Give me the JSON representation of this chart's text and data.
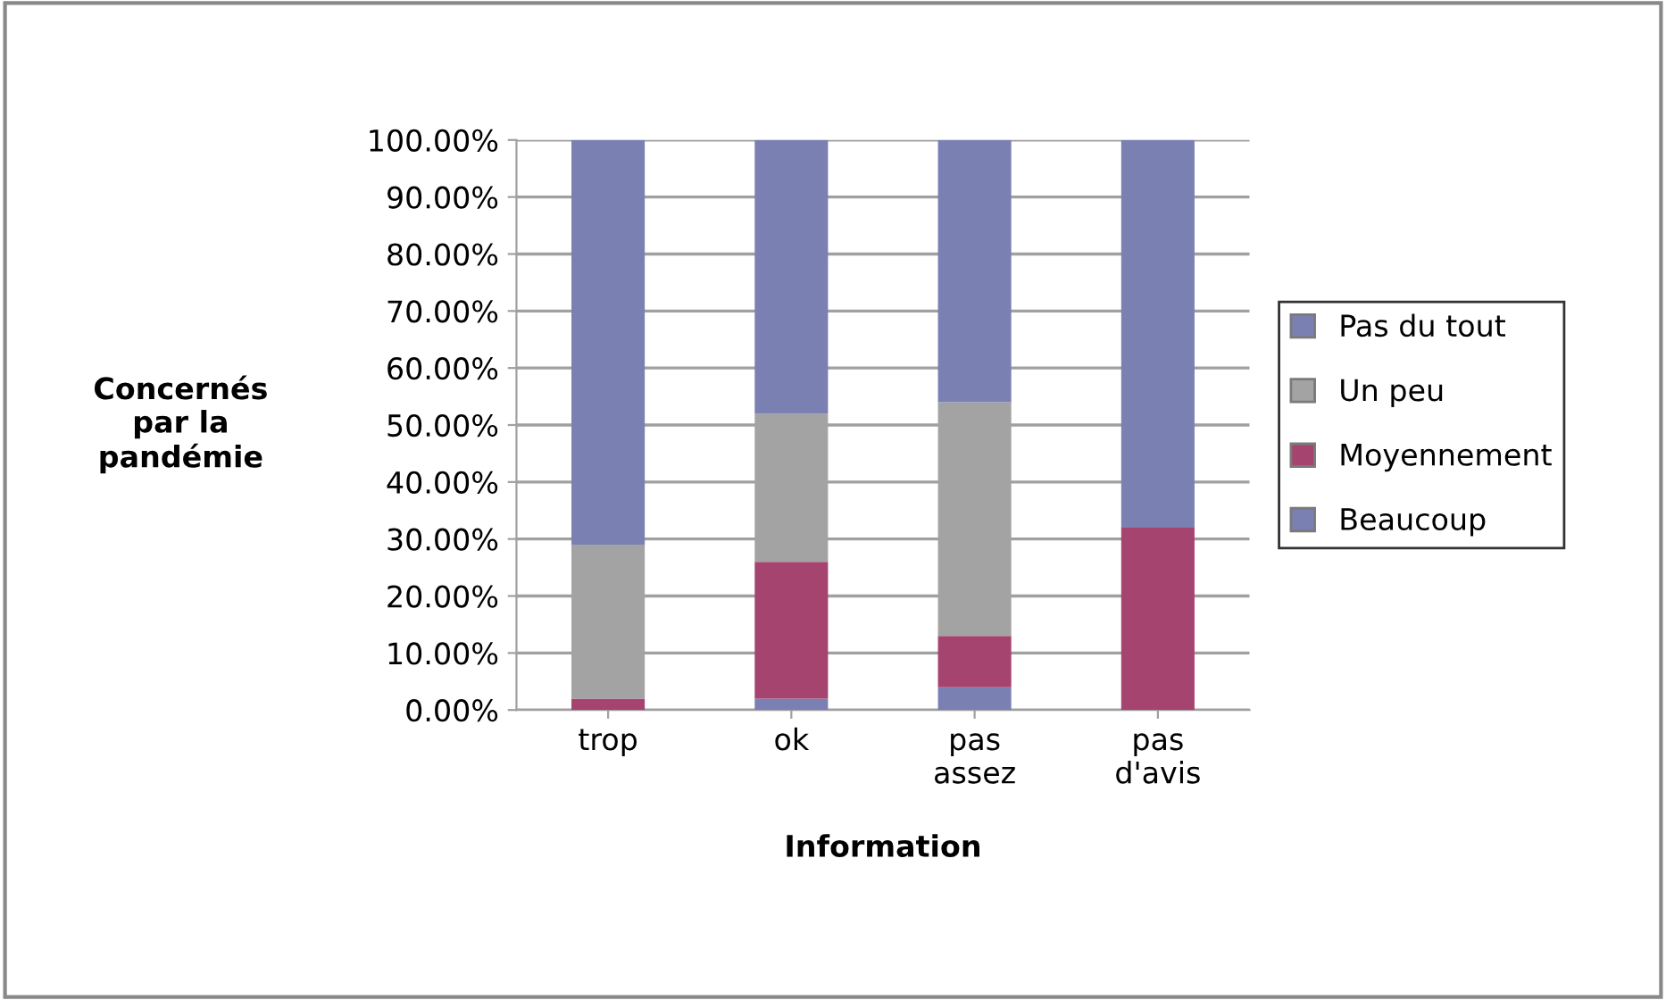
{
  "chart_data": {
    "type": "bar",
    "stacked": true,
    "xlabel": "Information",
    "ylabel": "Concernés\npar la\npandémie",
    "categories": [
      "trop",
      "ok",
      "pas\nassez",
      "pas\nd'avis"
    ],
    "series": [
      {
        "name": "Beaucoup",
        "color": "#7b80b3",
        "values": [
          0,
          2,
          4,
          0
        ]
      },
      {
        "name": "Moyennement",
        "color": "#a5446f",
        "values": [
          2,
          24,
          9,
          32
        ]
      },
      {
        "name": "Un peu",
        "color": "#a3a3a3",
        "values": [
          27,
          26,
          41,
          0
        ]
      },
      {
        "name": "Pas du tout",
        "color": "#7b80b3",
        "values": [
          71,
          48,
          46,
          68
        ]
      }
    ],
    "ylim": [
      0,
      100
    ],
    "yticks": [
      {
        "value": 0,
        "label": "0.00%"
      },
      {
        "value": 10,
        "label": "10.00%"
      },
      {
        "value": 20,
        "label": "20.00%"
      },
      {
        "value": 30,
        "label": "30.00%"
      },
      {
        "value": 40,
        "label": "40.00%"
      },
      {
        "value": 50,
        "label": "50.00%"
      },
      {
        "value": 60,
        "label": "60.00%"
      },
      {
        "value": 70,
        "label": "70.00%"
      },
      {
        "value": 80,
        "label": "80.00%"
      },
      {
        "value": 90,
        "label": "90.00%"
      },
      {
        "value": 100,
        "label": "100.00%"
      }
    ],
    "grid": "y",
    "legend": "right"
  }
}
